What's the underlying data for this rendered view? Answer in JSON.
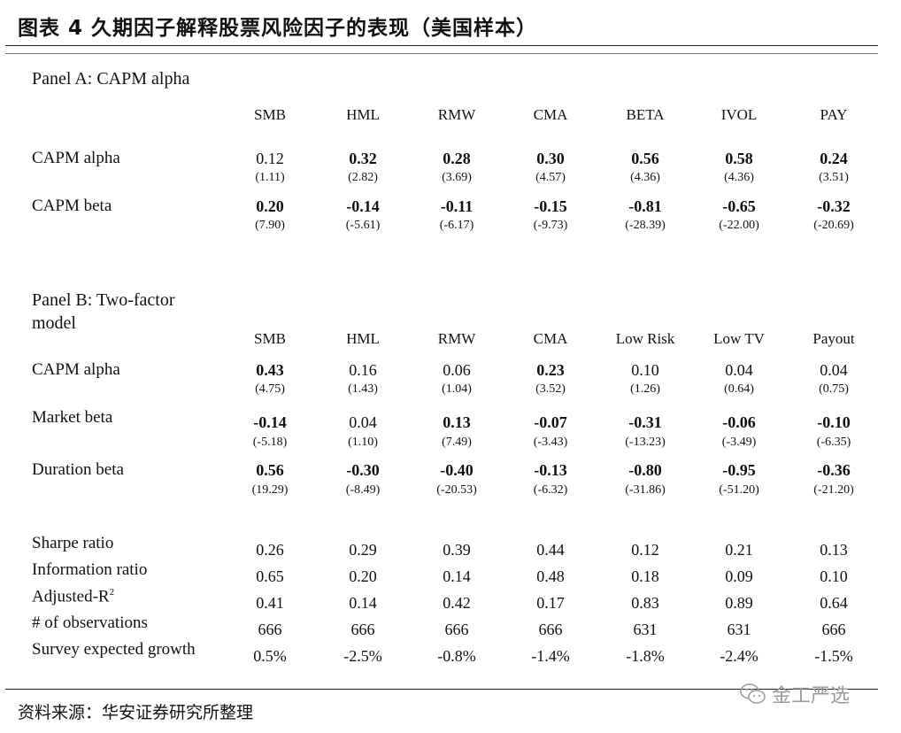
{
  "title": "图表 4 久期因子解释股票风险因子的表现（美国样本）",
  "panel_a": {
    "title": "Panel A: CAPM alpha",
    "headers": [
      "SMB",
      "HML",
      "RMW",
      "CMA",
      "BETA",
      "IVOL",
      "PAY"
    ],
    "rows": [
      {
        "label": "CAPM alpha",
        "values": [
          "0.12",
          "0.32",
          "0.28",
          "0.30",
          "0.56",
          "0.58",
          "0.24"
        ],
        "bold": [
          false,
          true,
          true,
          true,
          true,
          true,
          true
        ],
        "tstats": [
          "(1.11)",
          "(2.82)",
          "(3.69)",
          "(4.57)",
          "(4.36)",
          "(4.36)",
          "(3.51)"
        ]
      },
      {
        "label": "CAPM beta",
        "values": [
          "0.20",
          "-0.14",
          "-0.11",
          "-0.15",
          "-0.81",
          "-0.65",
          "-0.32"
        ],
        "bold": [
          true,
          true,
          true,
          true,
          true,
          true,
          true
        ],
        "tstats": [
          "(7.90)",
          "(-5.61)",
          "(-6.17)",
          "(-9.73)",
          "(-28.39)",
          "(-22.00)",
          "(-20.69)"
        ]
      }
    ]
  },
  "panel_b": {
    "title": "Panel B: Two-factor model",
    "headers": [
      "SMB",
      "HML",
      "RMW",
      "CMA",
      "Low Risk",
      "Low TV",
      "Payout"
    ],
    "rows": [
      {
        "label": "CAPM alpha",
        "values": [
          "0.43",
          "0.16",
          "0.06",
          "0.23",
          "0.10",
          "0.04",
          "0.04"
        ],
        "bold": [
          true,
          false,
          false,
          true,
          false,
          false,
          false
        ],
        "tstats": [
          "(4.75)",
          "(1.43)",
          "(1.04)",
          "(3.52)",
          "(1.26)",
          "(0.64)",
          "(0.75)"
        ]
      },
      {
        "label": "Market beta",
        "values": [
          "-0.14",
          "0.04",
          "0.13",
          "-0.07",
          "-0.31",
          "-0.06",
          "-0.10"
        ],
        "bold": [
          true,
          false,
          true,
          true,
          true,
          true,
          true
        ],
        "tstats": [
          "(-5.18)",
          "(1.10)",
          "(7.49)",
          "(-3.43)",
          "(-13.23)",
          "(-3.49)",
          "(-6.35)"
        ]
      },
      {
        "label": "Duration beta",
        "values": [
          "0.56",
          "-0.30",
          "-0.40",
          "-0.13",
          "-0.80",
          "-0.95",
          "-0.36"
        ],
        "bold": [
          true,
          true,
          true,
          true,
          true,
          true,
          true
        ],
        "tstats": [
          "(19.29)",
          "(-8.49)",
          "(-20.53)",
          "(-6.32)",
          "(-31.86)",
          "(-51.20)",
          "(-21.20)"
        ]
      }
    ]
  },
  "stats": [
    {
      "label": "Sharpe ratio",
      "values": [
        "0.26",
        "0.29",
        "0.39",
        "0.44",
        "0.12",
        "0.21",
        "0.13"
      ]
    },
    {
      "label": "Information ratio",
      "values": [
        "0.65",
        "0.20",
        "0.14",
        "0.48",
        "0.18",
        "0.09",
        "0.10"
      ]
    },
    {
      "label": "Adjusted-R",
      "sup": "2",
      "values": [
        "0.41",
        "0.14",
        "0.42",
        "0.17",
        "0.83",
        "0.89",
        "0.64"
      ]
    },
    {
      "label": "# of observations",
      "values": [
        "666",
        "666",
        "666",
        "666",
        "631",
        "631",
        "666"
      ]
    },
    {
      "label": "Survey expected growth",
      "values": [
        "0.5%",
        "-2.5%",
        "-0.8%",
        "-1.4%",
        "-1.8%",
        "-2.4%",
        "-1.5%"
      ]
    }
  ],
  "source": "资料来源：华安证券研究所整理",
  "watermark": "金工严选",
  "watermark_icon": "wechat-icon"
}
